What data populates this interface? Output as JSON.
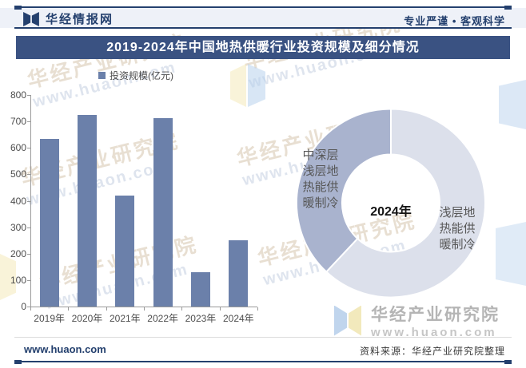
{
  "header": {
    "logo": "华经情报网",
    "slogan": "专业严谨 • 客观科学"
  },
  "title": "2019-2024年中国地热供暖行业投资规模及细分情况",
  "chart_data": [
    {
      "type": "bar",
      "legend": "投资规模(亿元)",
      "categories": [
        "2019年",
        "2020年",
        "2021年",
        "2022年",
        "2023年",
        "2024年"
      ],
      "values": [
        635,
        725,
        420,
        713,
        130,
        250
      ],
      "ylim": [
        0,
        800
      ],
      "ytick_step": 100,
      "grid": false,
      "legend_position": "top",
      "bar_color": "#6b80aa"
    },
    {
      "type": "pie",
      "subtype": "donut",
      "center_label": "2024年",
      "start_angle": "top",
      "direction": "clockwise",
      "note": "no percentage labels shown; slice shares estimated from arc angles",
      "slices": [
        {
          "label": "浅层地热能供暖制冷",
          "label_lines": [
            "浅层地",
            "热能供",
            "暖制冷"
          ],
          "value": 62,
          "color": "#dce0eb"
        },
        {
          "label": "中深层浅层地热能供暖制冷",
          "label_lines": [
            "中深层",
            "浅层地",
            "热能供",
            "暖制冷"
          ],
          "value": 38,
          "color": "#a9b3ce"
        }
      ]
    }
  ],
  "footer": {
    "site": "www.huaon.com",
    "source": "资料来源：华经产业研究院整理"
  },
  "watermark": {
    "brand": "华经产业研究院",
    "url": "www.huaon.com"
  },
  "colors": {
    "banner_bg": "#3a5282",
    "brand_navy": "#24406e",
    "bar": "#6b80aa",
    "donut_light": "#dce0eb",
    "donut_dark": "#a9b3ce"
  }
}
